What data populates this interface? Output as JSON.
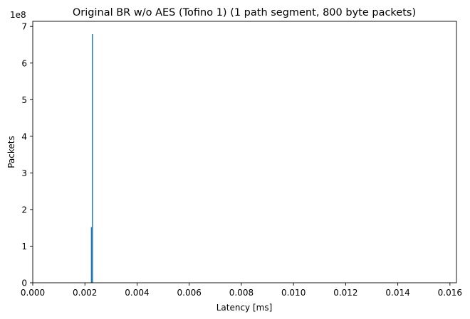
{
  "chart_data": {
    "type": "bar",
    "title": "Original BR w/o AES (Tofino 1) (1 path segment, 800 byte packets)",
    "xlabel": "Latency [ms]",
    "ylabel": "Packets",
    "y_offset_label": "1e8",
    "x_ticks": [
      "0.000",
      "0.002",
      "0.004",
      "0.006",
      "0.008",
      "0.010",
      "0.012",
      "0.014",
      "0.016"
    ],
    "x_tick_values": [
      0,
      0.002,
      0.004,
      0.006,
      0.008,
      0.01,
      0.012,
      0.014,
      0.016
    ],
    "y_ticks": [
      "0",
      "1",
      "2",
      "3",
      "4",
      "5",
      "6",
      "7"
    ],
    "y_tick_values": [
      0,
      100000000,
      200000000,
      300000000,
      400000000,
      500000000,
      600000000,
      700000000
    ],
    "xlim": [
      0,
      0.01625
    ],
    "ylim": [
      0,
      714000000
    ],
    "bar_color": "#1f77b4",
    "bars": [
      {
        "x0": 0.00223,
        "x1": 0.00227,
        "value": 152000000
      },
      {
        "x0": 0.00227,
        "x1": 0.00231,
        "value": 679000000
      }
    ],
    "grid": false,
    "legend": "none"
  }
}
